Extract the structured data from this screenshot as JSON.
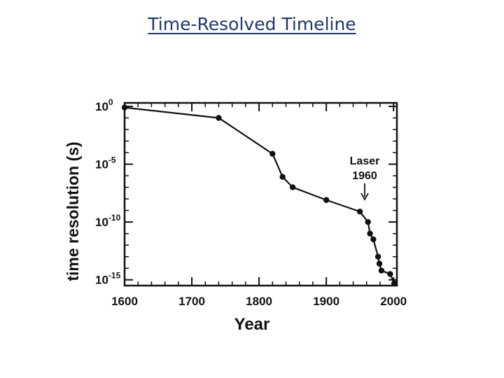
{
  "slide": {
    "title": "Time-Resolved Timeline"
  },
  "chart_data": {
    "type": "line",
    "title": "",
    "xlabel": "Year",
    "ylabel": "time resolution (s)",
    "xlim": [
      1600,
      2005
    ],
    "ylim_exponent": [
      -15.5,
      0.3
    ],
    "y_scale": "log",
    "x_ticks": [
      {
        "value": 1600,
        "label": "1600"
      },
      {
        "value": 1700,
        "label": "1700"
      },
      {
        "value": 1800,
        "label": "1800"
      },
      {
        "value": 1900,
        "label": "1900"
      },
      {
        "value": 2000,
        "label": "2000"
      }
    ],
    "y_ticks": [
      {
        "exp": 0,
        "base": "10",
        "sup": "0"
      },
      {
        "exp": -5,
        "base": "10",
        "sup": "-5"
      },
      {
        "exp": -10,
        "base": "10",
        "sup": "-10"
      },
      {
        "exp": -15,
        "base": "10",
        "sup": "-15"
      }
    ],
    "series": [
      {
        "points": [
          {
            "x": 1600,
            "exp": -0.1
          },
          {
            "x": 1740,
            "exp": -1.0
          },
          {
            "x": 1820,
            "exp": -4.1
          },
          {
            "x": 1835,
            "exp": -6.1
          },
          {
            "x": 1850,
            "exp": -7.0
          },
          {
            "x": 1900,
            "exp": -8.1
          },
          {
            "x": 1950,
            "exp": -9.1
          },
          {
            "x": 1962,
            "exp": -10.0
          },
          {
            "x": 1965,
            "exp": -11.0
          },
          {
            "x": 1970,
            "exp": -11.5
          },
          {
            "x": 1977,
            "exp": -13.0
          },
          {
            "x": 1979,
            "exp": -13.6
          },
          {
            "x": 1982,
            "exp": -14.2
          },
          {
            "x": 1995,
            "exp": -14.5
          },
          {
            "x": 2001,
            "exp": -15.3
          }
        ]
      }
    ],
    "annotation": {
      "line1": "Laser",
      "line2": "1960",
      "x": 1962
    },
    "grid": false
  }
}
